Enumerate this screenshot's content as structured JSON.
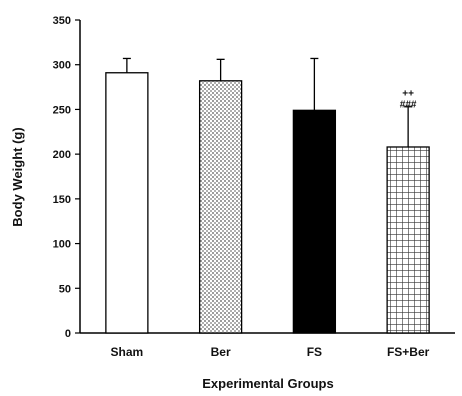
{
  "chart_data": {
    "type": "bar",
    "title": "",
    "xlabel": "Experimental Groups",
    "ylabel": "Body Weight (g)",
    "ylim": [
      0,
      350
    ],
    "yticks": [
      0,
      50,
      100,
      150,
      200,
      250,
      300,
      350
    ],
    "grid": false,
    "legend": "none",
    "categories": [
      "Sham",
      "Ber",
      "FS",
      "FS+Ber"
    ],
    "values": [
      291,
      282,
      249,
      208
    ],
    "errors": [
      16,
      24,
      58,
      45
    ],
    "fills": [
      "white",
      "dotted",
      "black",
      "grid-pattern"
    ],
    "annotations": [
      {
        "category": "FS+Ber",
        "lines": [
          "++",
          "###"
        ]
      }
    ]
  }
}
